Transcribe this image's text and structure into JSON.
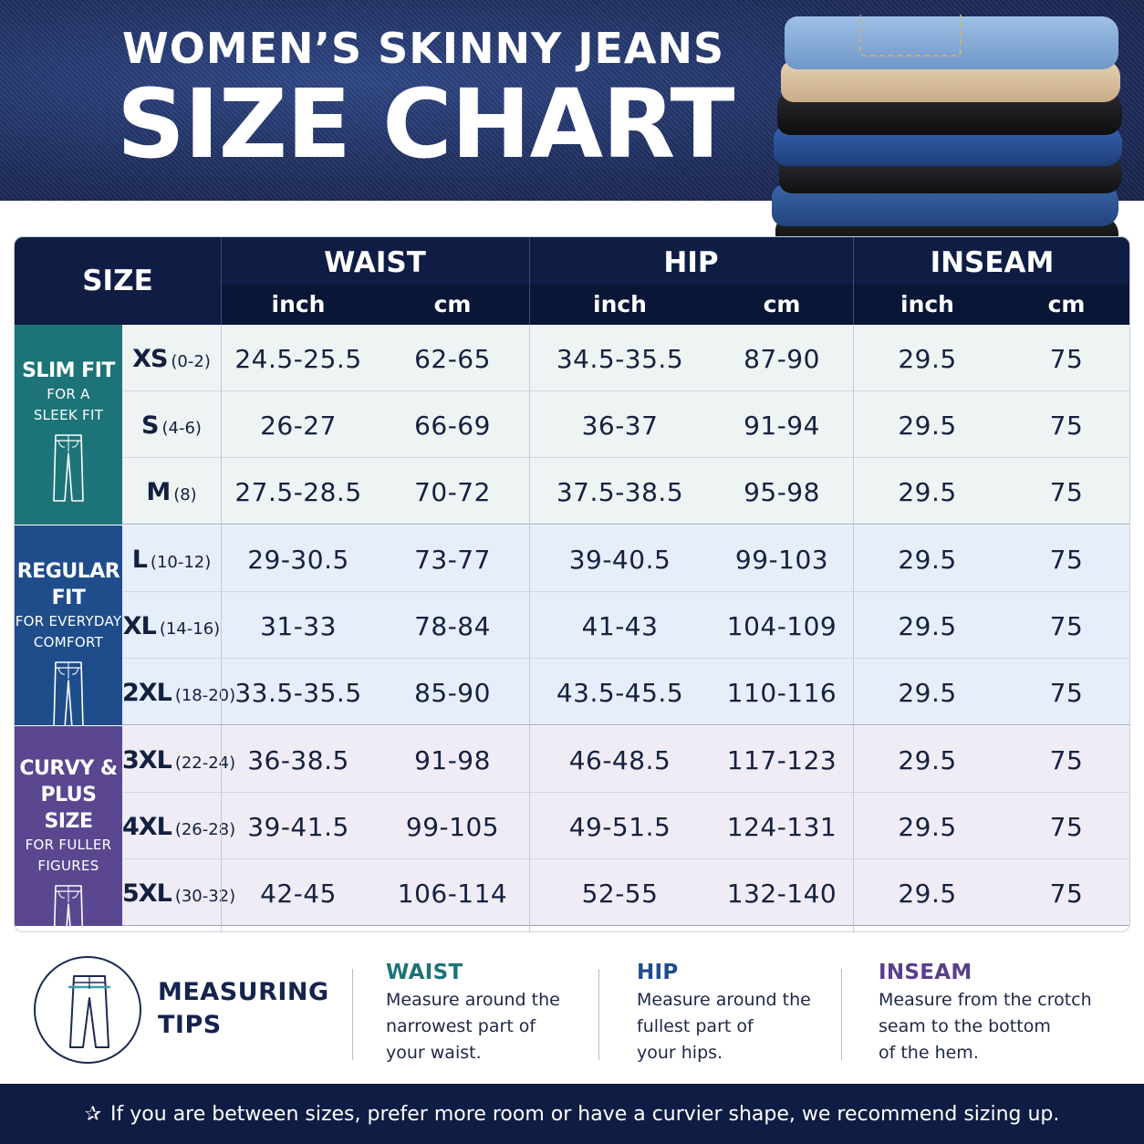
{
  "header": {
    "title_line1": "WOMEN’S SKINNY JEANS",
    "title_line2": "SIZE CHART",
    "image": "stack-of-folded-jeans",
    "colors": {
      "background": "#1f3266",
      "title": "#ffffff"
    }
  },
  "table": {
    "columns": {
      "size": "SIZE",
      "groups": [
        {
          "label": "WAIST",
          "units": [
            "inch",
            "cm"
          ]
        },
        {
          "label": "HIP",
          "units": [
            "inch",
            "cm"
          ]
        },
        {
          "label": "INSEAM",
          "units": [
            "inch",
            "cm"
          ]
        }
      ]
    },
    "fit_groups": [
      {
        "title_lines": [
          "SLIM FIT"
        ],
        "subtitle_lines": [
          "FOR A",
          "SLEEK FIT"
        ],
        "icon": "jeans-icon",
        "color": "#1c7478",
        "row_tint": "#eef3f3",
        "rows": [
          {
            "size": "XS",
            "range": "(0-2)",
            "waist_in": "24.5-25.5",
            "waist_cm": "62-65",
            "hip_in": "34.5-35.5",
            "hip_cm": "87-90",
            "inseam_in": "29.5",
            "inseam_cm": "75"
          },
          {
            "size": "S",
            "range": "(4-6)",
            "waist_in": "26-27",
            "waist_cm": "66-69",
            "hip_in": "36-37",
            "hip_cm": "91-94",
            "inseam_in": "29.5",
            "inseam_cm": "75"
          },
          {
            "size": "M",
            "range": "(8)",
            "waist_in": "27.5-28.5",
            "waist_cm": "70-72",
            "hip_in": "37.5-38.5",
            "hip_cm": "95-98",
            "inseam_in": "29.5",
            "inseam_cm": "75"
          }
        ]
      },
      {
        "title_lines": [
          "REGULAR FIT"
        ],
        "subtitle_lines": [
          "FOR EVERYDAY",
          "COMFORT"
        ],
        "icon": "jeans-icon",
        "color": "#1f4d8c",
        "row_tint": "#e6eef9",
        "rows": [
          {
            "size": "L",
            "range": "(10-12)",
            "waist_in": "29-30.5",
            "waist_cm": "73-77",
            "hip_in": "39-40.5",
            "hip_cm": "99-103",
            "inseam_in": "29.5",
            "inseam_cm": "75"
          },
          {
            "size": "XL",
            "range": "(14-16)",
            "waist_in": "31-33",
            "waist_cm": "78-84",
            "hip_in": "41-43",
            "hip_cm": "104-109",
            "inseam_in": "29.5",
            "inseam_cm": "75"
          },
          {
            "size": "2XL",
            "range": "(18-20)",
            "waist_in": "33.5-35.5",
            "waist_cm": "85-90",
            "hip_in": "43.5-45.5",
            "hip_cm": "110-116",
            "inseam_in": "29.5",
            "inseam_cm": "75"
          }
        ]
      },
      {
        "title_lines": [
          "CURVY &",
          "PLUS SIZE"
        ],
        "subtitle_lines": [
          "FOR FULLER",
          "FIGURES"
        ],
        "icon": "jeans-icon",
        "color": "#5a4790",
        "row_tint": "#efecf5",
        "rows": [
          {
            "size": "3XL",
            "range": "(22-24)",
            "waist_in": "36-38.5",
            "waist_cm": "91-98",
            "hip_in": "46-48.5",
            "hip_cm": "117-123",
            "inseam_in": "29.5",
            "inseam_cm": "75"
          },
          {
            "size": "4XL",
            "range": "(26-28)",
            "waist_in": "39-41.5",
            "waist_cm": "99-105",
            "hip_in": "49-51.5",
            "hip_cm": "124-131",
            "inseam_in": "29.5",
            "inseam_cm": "75"
          },
          {
            "size": "5XL",
            "range": "(30-32)",
            "waist_in": "42-45",
            "waist_cm": "106-114",
            "hip_in": "52-55",
            "hip_cm": "132-140",
            "inseam_in": "29.5",
            "inseam_cm": "75"
          }
        ]
      }
    ]
  },
  "tips": {
    "label_lines": [
      "MEASURING",
      "TIPS"
    ],
    "icon": "jeans-measuring-icon",
    "items": [
      {
        "title": "WAIST",
        "color": "#1c7478",
        "body_lines": [
          "Measure around the",
          "narrowest part of",
          "your waist."
        ]
      },
      {
        "title": "HIP",
        "color": "#1f4d8c",
        "body_lines": [
          "Measure around the",
          "fullest part of",
          "your hips."
        ]
      },
      {
        "title": "INSEAM",
        "color": "#5a3f8c",
        "body_lines": [
          "Measure from the crotch",
          "seam to the bottom",
          "of the hem."
        ]
      }
    ]
  },
  "footer": {
    "icon": "star-icon",
    "star": "✰",
    "text": "If you are between sizes, prefer more room or have a curvier shape, we recommend sizing up."
  }
}
